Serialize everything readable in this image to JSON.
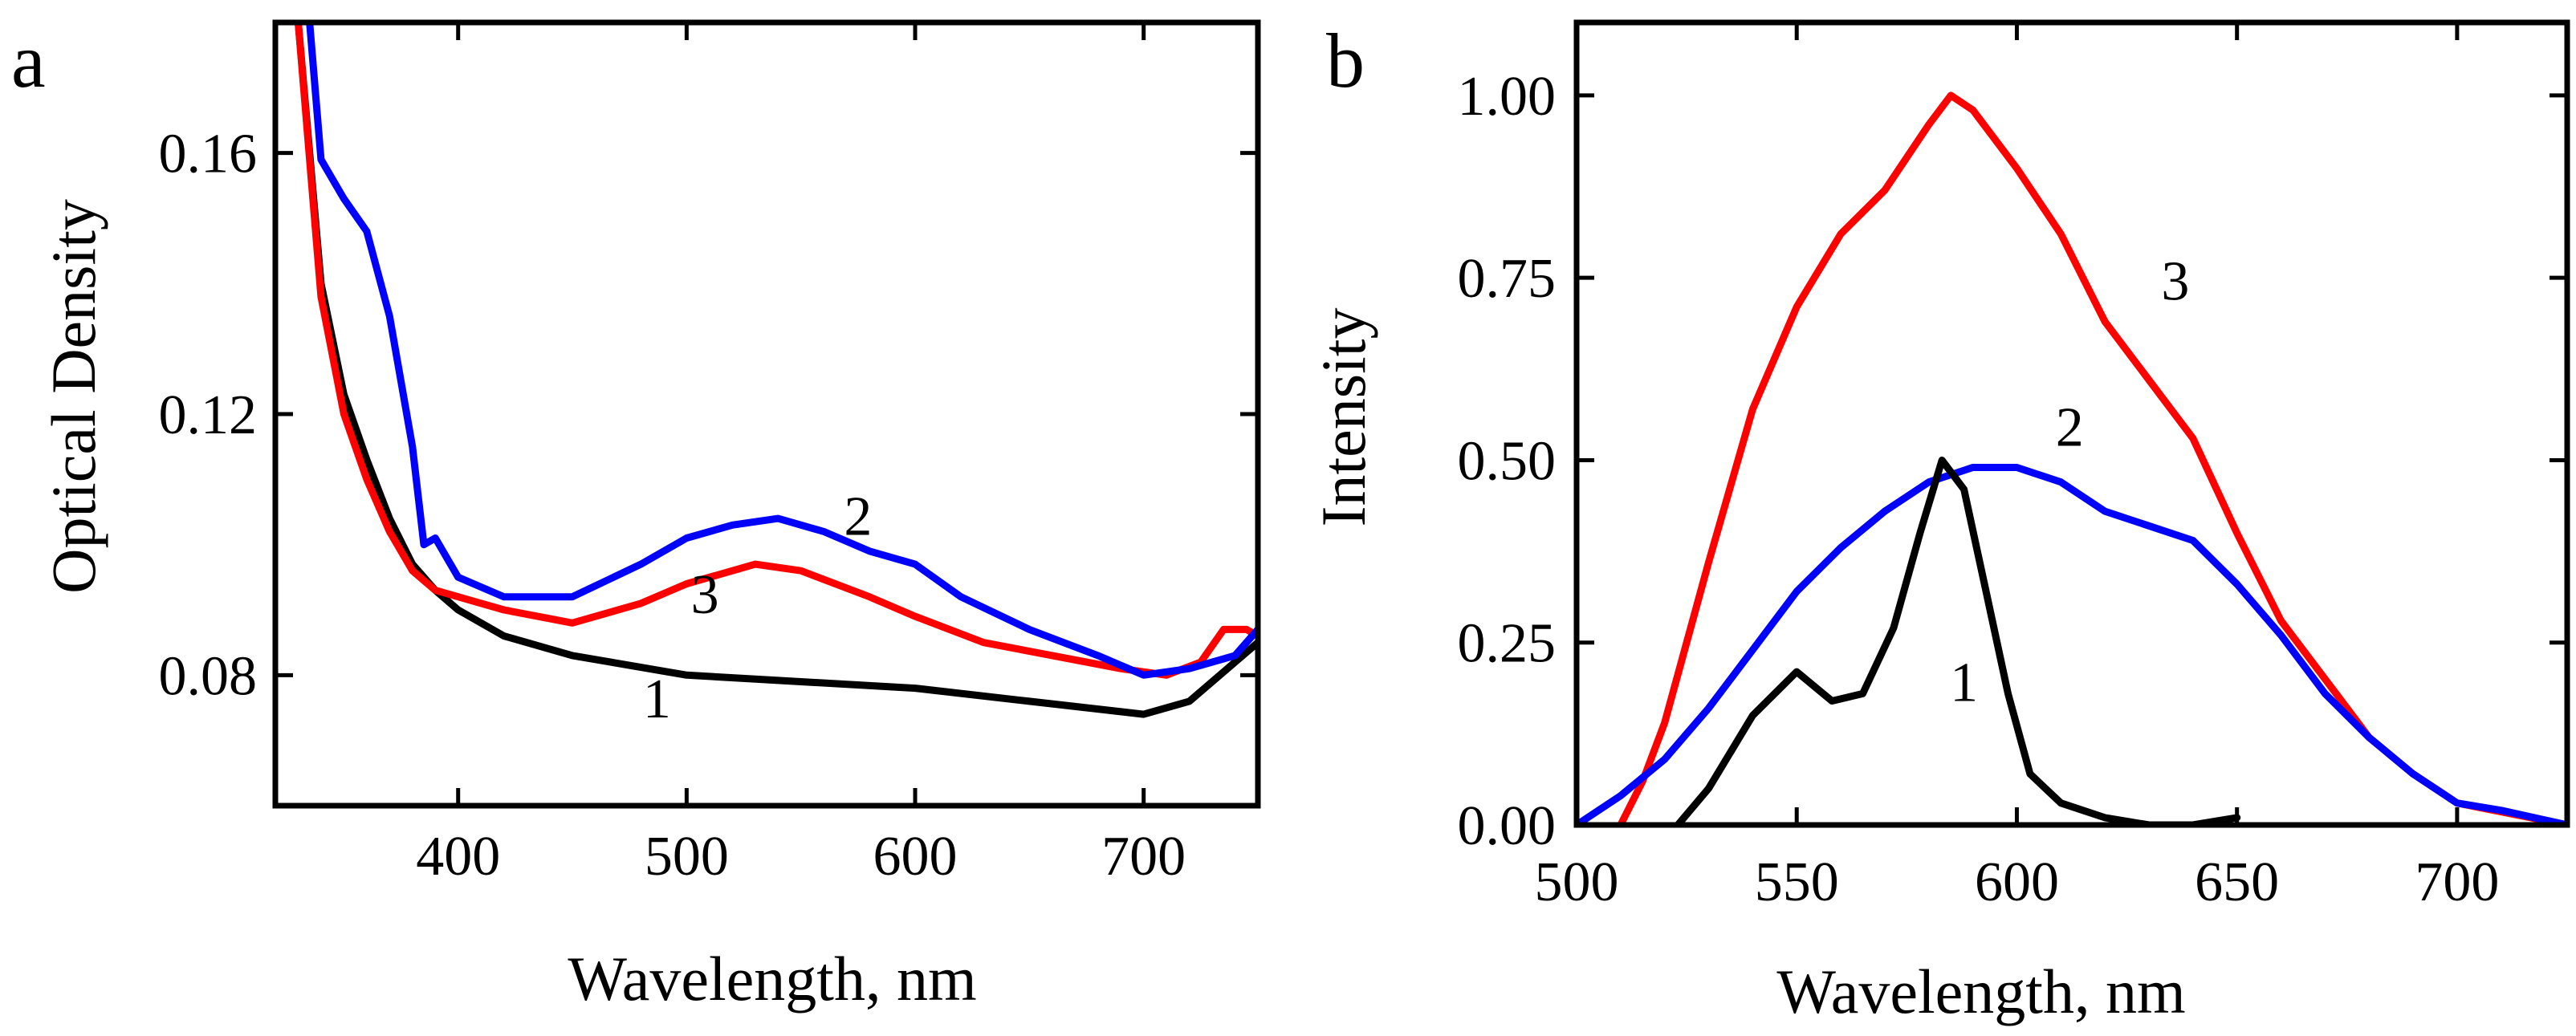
{
  "chart_data": [
    {
      "type": "line",
      "panel_label": "a",
      "xlabel": "Wavelength, nm",
      "ylabel": "Optical Density",
      "xlim": [
        320,
        750
      ],
      "ylim": [
        0.06,
        0.18
      ],
      "xticks": [
        400,
        500,
        600,
        700
      ],
      "yticks": [
        0.08,
        0.12,
        0.16
      ],
      "xtick_labels": [
        "400",
        "500",
        "600",
        "700"
      ],
      "ytick_labels": [
        "0.08",
        "0.12",
        "0.16"
      ],
      "grid": false,
      "legend": "none",
      "series": [
        {
          "name": "1",
          "color": "#000000",
          "x": [
            330,
            340,
            350,
            360,
            370,
            380,
            390,
            400,
            420,
            450,
            500,
            550,
            600,
            650,
            700,
            720,
            740,
            750
          ],
          "y": [
            0.18,
            0.14,
            0.123,
            0.113,
            0.104,
            0.097,
            0.093,
            0.09,
            0.086,
            0.083,
            0.08,
            0.079,
            0.078,
            0.076,
            0.074,
            0.076,
            0.082,
            0.085
          ],
          "label_at": [
            487,
            0.0735
          ]
        },
        {
          "name": "2",
          "color": "#0000ff",
          "x": [
            335,
            340,
            350,
            360,
            370,
            380,
            385,
            390,
            400,
            420,
            450,
            480,
            500,
            520,
            540,
            560,
            580,
            600,
            620,
            650,
            680,
            700,
            720,
            740,
            750
          ],
          "y": [
            0.18,
            0.159,
            0.153,
            0.148,
            0.135,
            0.115,
            0.1,
            0.101,
            0.095,
            0.092,
            0.092,
            0.097,
            0.101,
            0.103,
            0.104,
            0.102,
            0.099,
            0.097,
            0.092,
            0.087,
            0.083,
            0.08,
            0.081,
            0.083,
            0.087
          ],
          "label_at": [
            575,
            0.1015
          ]
        },
        {
          "name": "3",
          "color": "#ff0000",
          "x": [
            330,
            340,
            350,
            360,
            370,
            380,
            390,
            400,
            420,
            450,
            480,
            500,
            530,
            550,
            580,
            600,
            630,
            660,
            690,
            710,
            725,
            735,
            745,
            750
          ],
          "y": [
            0.18,
            0.138,
            0.12,
            0.11,
            0.102,
            0.096,
            0.093,
            0.092,
            0.09,
            0.088,
            0.091,
            0.094,
            0.097,
            0.096,
            0.092,
            0.089,
            0.085,
            0.083,
            0.081,
            0.08,
            0.082,
            0.087,
            0.087,
            0.086
          ],
          "label_at": [
            508,
            0.0895
          ]
        }
      ]
    },
    {
      "type": "line",
      "panel_label": "b",
      "xlabel": "Wavelength, nm",
      "ylabel": "Intensity",
      "xlim": [
        500,
        725
      ],
      "ylim": [
        0.0,
        1.1
      ],
      "xticks": [
        500,
        550,
        600,
        650,
        700
      ],
      "yticks": [
        0.0,
        0.25,
        0.5,
        0.75,
        1.0
      ],
      "xtick_labels": [
        "500",
        "550",
        "600",
        "650",
        "700"
      ],
      "ytick_labels": [
        "0.00",
        "0.25",
        "0.50",
        "0.75",
        "1.00"
      ],
      "grid": false,
      "legend": "none",
      "series": [
        {
          "name": "1",
          "color": "#000000",
          "x": [
            523,
            530,
            540,
            550,
            558,
            565,
            572,
            578,
            583,
            588,
            593,
            598,
            603,
            610,
            620,
            630,
            640,
            650
          ],
          "y": [
            0.0,
            0.05,
            0.15,
            0.21,
            0.17,
            0.18,
            0.27,
            0.4,
            0.5,
            0.46,
            0.32,
            0.18,
            0.07,
            0.03,
            0.01,
            0.0,
            0.0,
            0.01
          ],
          "label_at": [
            588,
            0.17
          ]
        },
        {
          "name": "2",
          "color": "#0000ff",
          "x": [
            500,
            510,
            520,
            530,
            540,
            550,
            560,
            570,
            580,
            590,
            600,
            610,
            620,
            630,
            640,
            650,
            660,
            670,
            680,
            690,
            700,
            710,
            725
          ],
          "y": [
            0.0,
            0.04,
            0.09,
            0.16,
            0.24,
            0.32,
            0.38,
            0.43,
            0.47,
            0.49,
            0.49,
            0.47,
            0.43,
            0.41,
            0.39,
            0.33,
            0.26,
            0.18,
            0.12,
            0.07,
            0.03,
            0.02,
            0.0
          ],
          "label_at": [
            612,
            0.52
          ]
        },
        {
          "name": "3",
          "color": "#ff0000",
          "x": [
            510,
            515,
            520,
            530,
            540,
            550,
            560,
            570,
            580,
            585,
            590,
            600,
            610,
            620,
            630,
            640,
            650,
            660,
            670,
            680,
            690,
            700,
            725
          ],
          "y": [
            0.0,
            0.06,
            0.14,
            0.36,
            0.57,
            0.71,
            0.81,
            0.87,
            0.96,
            1.0,
            0.98,
            0.9,
            0.81,
            0.69,
            0.61,
            0.53,
            0.4,
            0.28,
            0.2,
            0.12,
            0.07,
            0.03,
            0.0
          ],
          "label_at": [
            636,
            0.72
          ]
        }
      ]
    }
  ]
}
